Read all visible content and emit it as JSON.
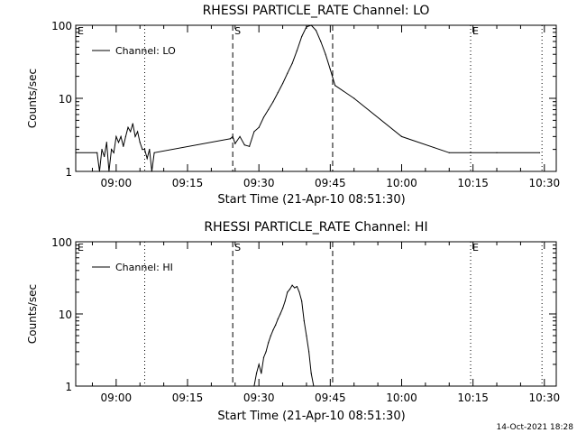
{
  "footer": {
    "timestamp": "14-Oct-2021 18:28"
  },
  "chart_data": [
    {
      "type": "line",
      "title": "RHESSI PARTICLE_RATE Channel: LO",
      "xlabel": "Start Time (21-Apr-10 08:51:30)",
      "ylabel": "Counts/sec",
      "yscale": "log",
      "ylim": [
        1,
        100
      ],
      "xlim_minutes_after_start": [
        0,
        101
      ],
      "x_ticks": [
        "09:00",
        "09:15",
        "09:30",
        "09:45",
        "10:00",
        "10:15",
        "10:30"
      ],
      "y_ticks": [
        "1",
        "10",
        "100"
      ],
      "legend": {
        "position": "top-left",
        "entries": [
          "Channel: LO"
        ]
      },
      "markers": [
        {
          "label": "E",
          "time": "08:51:30",
          "style": "none"
        },
        {
          "label": "",
          "time": "09:06",
          "style": "dotted"
        },
        {
          "label": "S",
          "time": "09:24:30",
          "style": "dashed"
        },
        {
          "label": "",
          "time": "09:45:30",
          "style": "dashed"
        },
        {
          "label": "E",
          "time": "10:14:30",
          "style": "dotted"
        },
        {
          "label": "",
          "time": "10:29:30",
          "style": "dotted"
        }
      ],
      "series": [
        {
          "name": "Channel: LO",
          "x": [
            "08:51:30",
            "08:56:00",
            "08:56:30",
            "08:57:00",
            "08:57:30",
            "08:58:00",
            "08:58:30",
            "08:59:00",
            "08:59:30",
            "09:00:00",
            "09:00:30",
            "09:01:00",
            "09:01:30",
            "09:02:00",
            "09:02:30",
            "09:03:00",
            "09:03:30",
            "09:04:00",
            "09:04:30",
            "09:05:00",
            "09:05:30",
            "09:06:00",
            "09:06:30",
            "09:07:00",
            "09:07:30",
            "09:08:00",
            "09:24:00",
            "09:24:30",
            "09:25:00",
            "09:26:00",
            "09:27:00",
            "09:28:00",
            "09:29:00",
            "09:30:00",
            "09:31:00",
            "09:32:00",
            "09:33:00",
            "09:34:00",
            "09:35:00",
            "09:36:00",
            "09:37:00",
            "09:38:00",
            "09:39:00",
            "09:40:00",
            "09:41:00",
            "09:42:00",
            "09:43:00",
            "09:44:00",
            "09:45:00",
            "09:46:00",
            "09:50:00",
            "10:00:00",
            "10:10:00",
            "10:20:00",
            "10:29:00"
          ],
          "y": [
            1.8,
            1.8,
            1,
            2,
            1.6,
            2.5,
            1,
            2,
            1.8,
            3,
            2.5,
            3,
            2.2,
            3,
            4,
            3.5,
            4.5,
            3,
            3.5,
            2.5,
            2,
            2,
            1.5,
            2,
            1,
            1.8,
            2.8,
            3,
            2.4,
            3,
            2.3,
            2.2,
            3.5,
            4,
            5.5,
            7,
            9,
            12,
            16,
            22,
            30,
            45,
            70,
            95,
            100,
            85,
            60,
            40,
            25,
            15,
            10,
            3,
            1.8,
            1.8,
            1.8
          ]
        }
      ]
    },
    {
      "type": "line",
      "title": "RHESSI PARTICLE_RATE Channel: HI",
      "xlabel": "Start Time (21-Apr-10 08:51:30)",
      "ylabel": "Counts/sec",
      "yscale": "log",
      "ylim": [
        1,
        100
      ],
      "x_ticks": [
        "09:00",
        "09:15",
        "09:30",
        "09:45",
        "10:00",
        "10:15",
        "10:30"
      ],
      "y_ticks": [
        "1",
        "10",
        "100"
      ],
      "legend": {
        "position": "top-left",
        "entries": [
          "Channel: HI"
        ]
      },
      "markers": [
        {
          "label": "E",
          "time": "08:51:30",
          "style": "none"
        },
        {
          "label": "",
          "time": "09:06",
          "style": "dotted"
        },
        {
          "label": "S",
          "time": "09:24:30",
          "style": "dashed"
        },
        {
          "label": "",
          "time": "09:45:30",
          "style": "dashed"
        },
        {
          "label": "E",
          "time": "10:14:30",
          "style": "dotted"
        },
        {
          "label": "",
          "time": "10:29:30",
          "style": "dotted"
        }
      ],
      "series": [
        {
          "name": "Channel: HI",
          "x": [
            "09:29:00",
            "09:29:30",
            "09:30:00",
            "09:30:30",
            "09:31:00",
            "09:31:30",
            "09:32:00",
            "09:32:30",
            "09:33:00",
            "09:33:30",
            "09:34:00",
            "09:34:30",
            "09:35:00",
            "09:35:30",
            "09:36:00",
            "09:36:30",
            "09:37:00",
            "09:37:30",
            "09:38:00",
            "09:38:30",
            "09:39:00",
            "09:39:30",
            "09:40:00",
            "09:40:30",
            "09:41:00",
            "09:41:30"
          ],
          "y": [
            1,
            1.5,
            2,
            1.5,
            2.5,
            3,
            4,
            5,
            6,
            7,
            8.5,
            10,
            12,
            15,
            20,
            22,
            25,
            23,
            24,
            20,
            15,
            8,
            5,
            3,
            1.5,
            1
          ]
        }
      ]
    }
  ]
}
